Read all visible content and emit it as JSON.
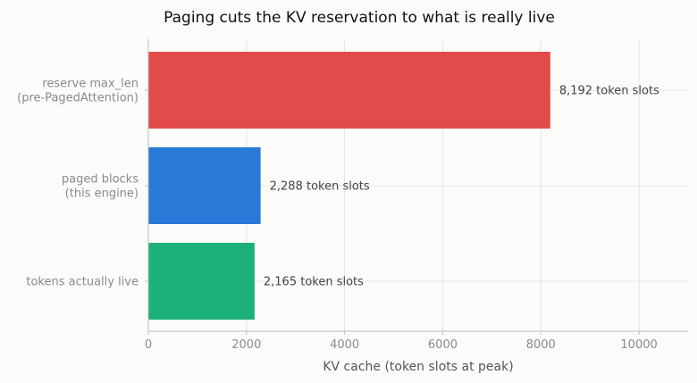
{
  "chart_data": {
    "type": "bar",
    "orientation": "horizontal",
    "title": "Paging cuts the KV reservation to what is really live",
    "xlabel": "KV cache (token slots at peak)",
    "ylabel": "",
    "xlim": [
      0,
      11000
    ],
    "xticks": [
      0,
      2000,
      4000,
      6000,
      8000,
      10000
    ],
    "xtick_labels": [
      "0",
      "2000",
      "4000",
      "6000",
      "8000",
      "10000"
    ],
    "grid": "vertical",
    "categories": [
      [
        "reserve max_len",
        "(pre-PagedAttention)"
      ],
      [
        "paged blocks",
        "(this engine)"
      ],
      [
        "tokens actually live"
      ]
    ],
    "values": [
      8192,
      2288,
      2165
    ],
    "value_labels": [
      "8,192 token slots",
      "2,288 token slots",
      "2,165 token slots"
    ],
    "colors": [
      "#e34a4a",
      "#2979d8",
      "#1cb07a"
    ]
  }
}
